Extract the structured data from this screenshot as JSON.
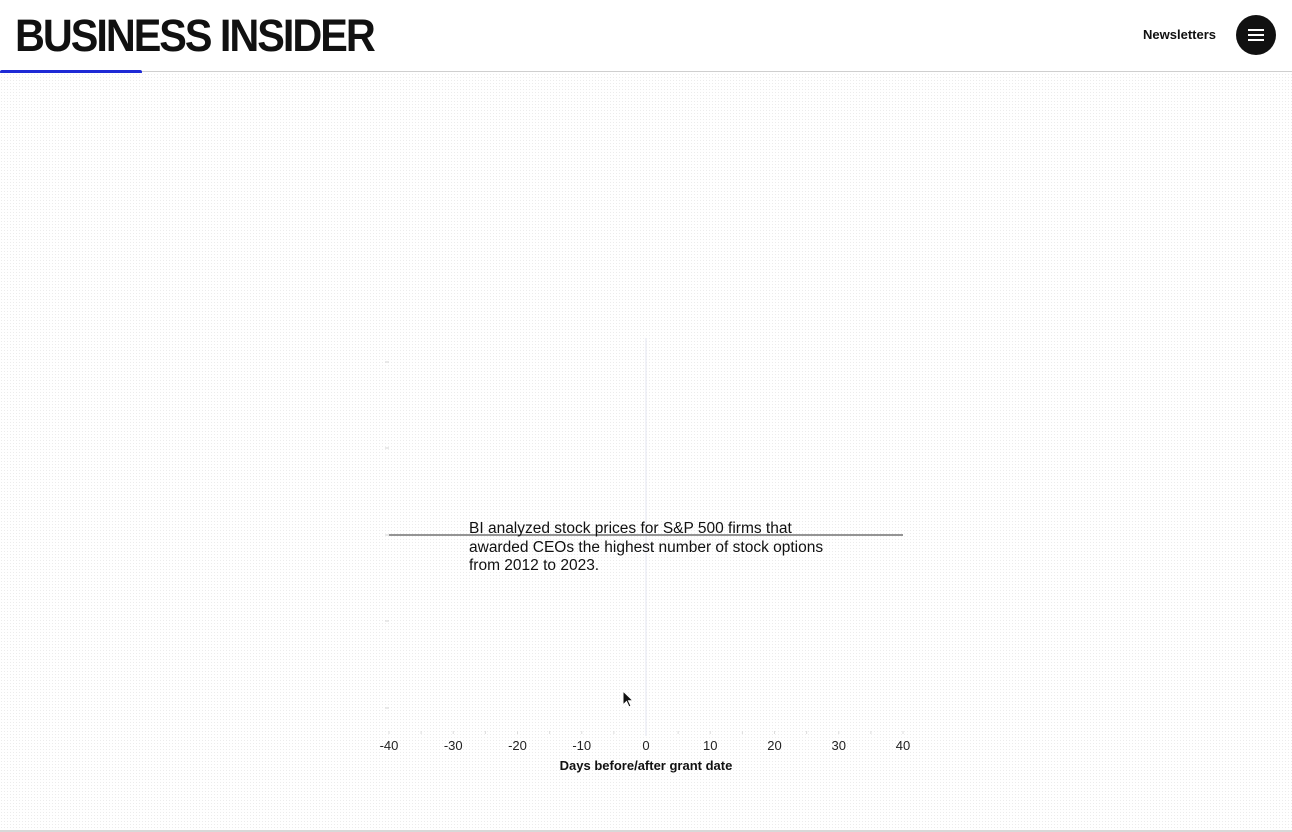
{
  "header": {
    "logo_text": "BUSINESS INSIDER",
    "newsletters_label": "Newsletters",
    "menu_icon": "hamburger-menu-icon",
    "accent_color": "#1e2ad6",
    "reading_progress": 0.11
  },
  "chart_data": {
    "type": "line",
    "xlabel": "Days before/after grant date",
    "xlim": [
      -40,
      40
    ],
    "x_ticks": [
      -40,
      -30,
      -20,
      -10,
      0,
      10,
      20,
      30,
      40
    ],
    "x_tick_labels": [
      "-40",
      "-30",
      "-20",
      "-10",
      "0",
      "10",
      "20",
      "30",
      "40"
    ],
    "series": [
      {
        "x": [
          -40,
          40
        ],
        "y": [
          0,
          0
        ],
        "color": "#555555"
      }
    ],
    "annotation": "BI analyzed stock prices for S&P 500 firms that awarded CEOs the highest number of stock options from 2012 to 2023."
  }
}
